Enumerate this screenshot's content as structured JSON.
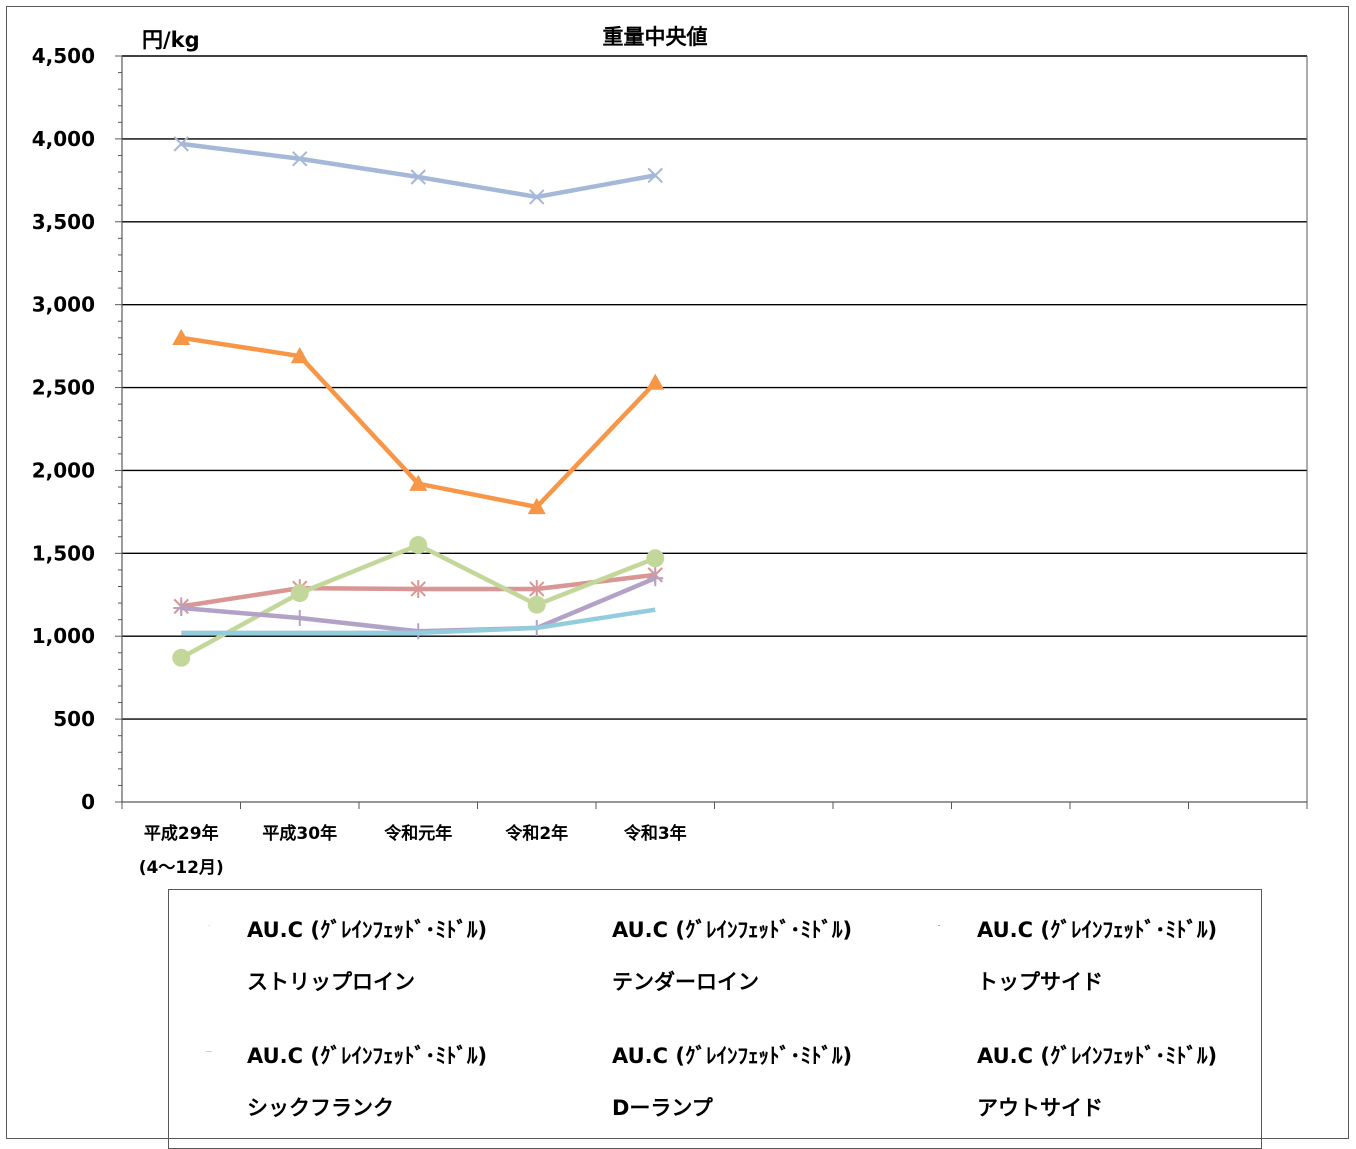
{
  "chart_data": {
    "type": "line",
    "title": "重量中央値",
    "unit_label": "円/kg",
    "ylim": [
      0,
      4500
    ],
    "y_ticks": [
      "0",
      "500",
      "1,000",
      "1,500",
      "2,000",
      "2,500",
      "3,000",
      "3,500",
      "4,000",
      "4,500"
    ],
    "y_tick_values": [
      0,
      500,
      1000,
      1500,
      2000,
      2500,
      3000,
      3500,
      4000,
      4500
    ],
    "grid": "horizontal",
    "legend_position": "bottom",
    "category_slots": 10,
    "categories": [
      {
        "line1": "平成29年",
        "line2": "(4～12月)"
      },
      {
        "line1": "平成30年",
        "line2": ""
      },
      {
        "line1": "令和元年",
        "line2": ""
      },
      {
        "line1": "令和2年",
        "line2": ""
      },
      {
        "line1": "令和3年",
        "line2": ""
      }
    ],
    "series": [
      {
        "name_line1": "AU.C (ｸﾞﾚｲﾝﾌｪｯﾄﾞ･ﾐﾄﾞﾙ)",
        "name_line2": "ストリップロイン",
        "color": "#F79646",
        "marker": "triangle",
        "values": [
          2800,
          2690,
          1920,
          1780,
          2530
        ]
      },
      {
        "name_line1": "AU.C (ｸﾞﾚｲﾝﾌｪｯﾄﾞ･ﾐﾄﾞﾙ)",
        "name_line2": "テンダーロイン",
        "color": "#A5B8D8",
        "marker": "x",
        "values": [
          3970,
          3880,
          3770,
          3650,
          3780
        ]
      },
      {
        "name_line1": "AU.C (ｸﾞﾚｲﾝﾌｪｯﾄﾞ･ﾐﾄﾞﾙ)",
        "name_line2": "トップサイド",
        "color": "#D99694",
        "marker": "star",
        "values": [
          1180,
          1290,
          1285,
          1285,
          1370
        ]
      },
      {
        "name_line1": "AU.C (ｸﾞﾚｲﾝﾌｪｯﾄﾞ･ﾐﾄﾞﾙ)",
        "name_line2": "シックフランク",
        "color": "#C4D79B",
        "marker": "circle",
        "values": [
          870,
          1260,
          1550,
          1190,
          1470
        ]
      },
      {
        "name_line1": "AU.C (ｸﾞﾚｲﾝﾌｪｯﾄﾞ･ﾐﾄﾞﾙ)",
        "name_line2": "Dーランプ",
        "color": "#B3A2C7",
        "marker": "plus",
        "values": [
          1170,
          1110,
          1030,
          1050,
          1350
        ]
      },
      {
        "name_line1": "AU.C (ｸﾞﾚｲﾝﾌｪｯﾄﾞ･ﾐﾄﾞﾙ)",
        "name_line2": "アウトサイド",
        "color": "#93CDDD",
        "marker": "none",
        "values": [
          1020,
          1020,
          1020,
          1050,
          1160
        ]
      }
    ]
  }
}
